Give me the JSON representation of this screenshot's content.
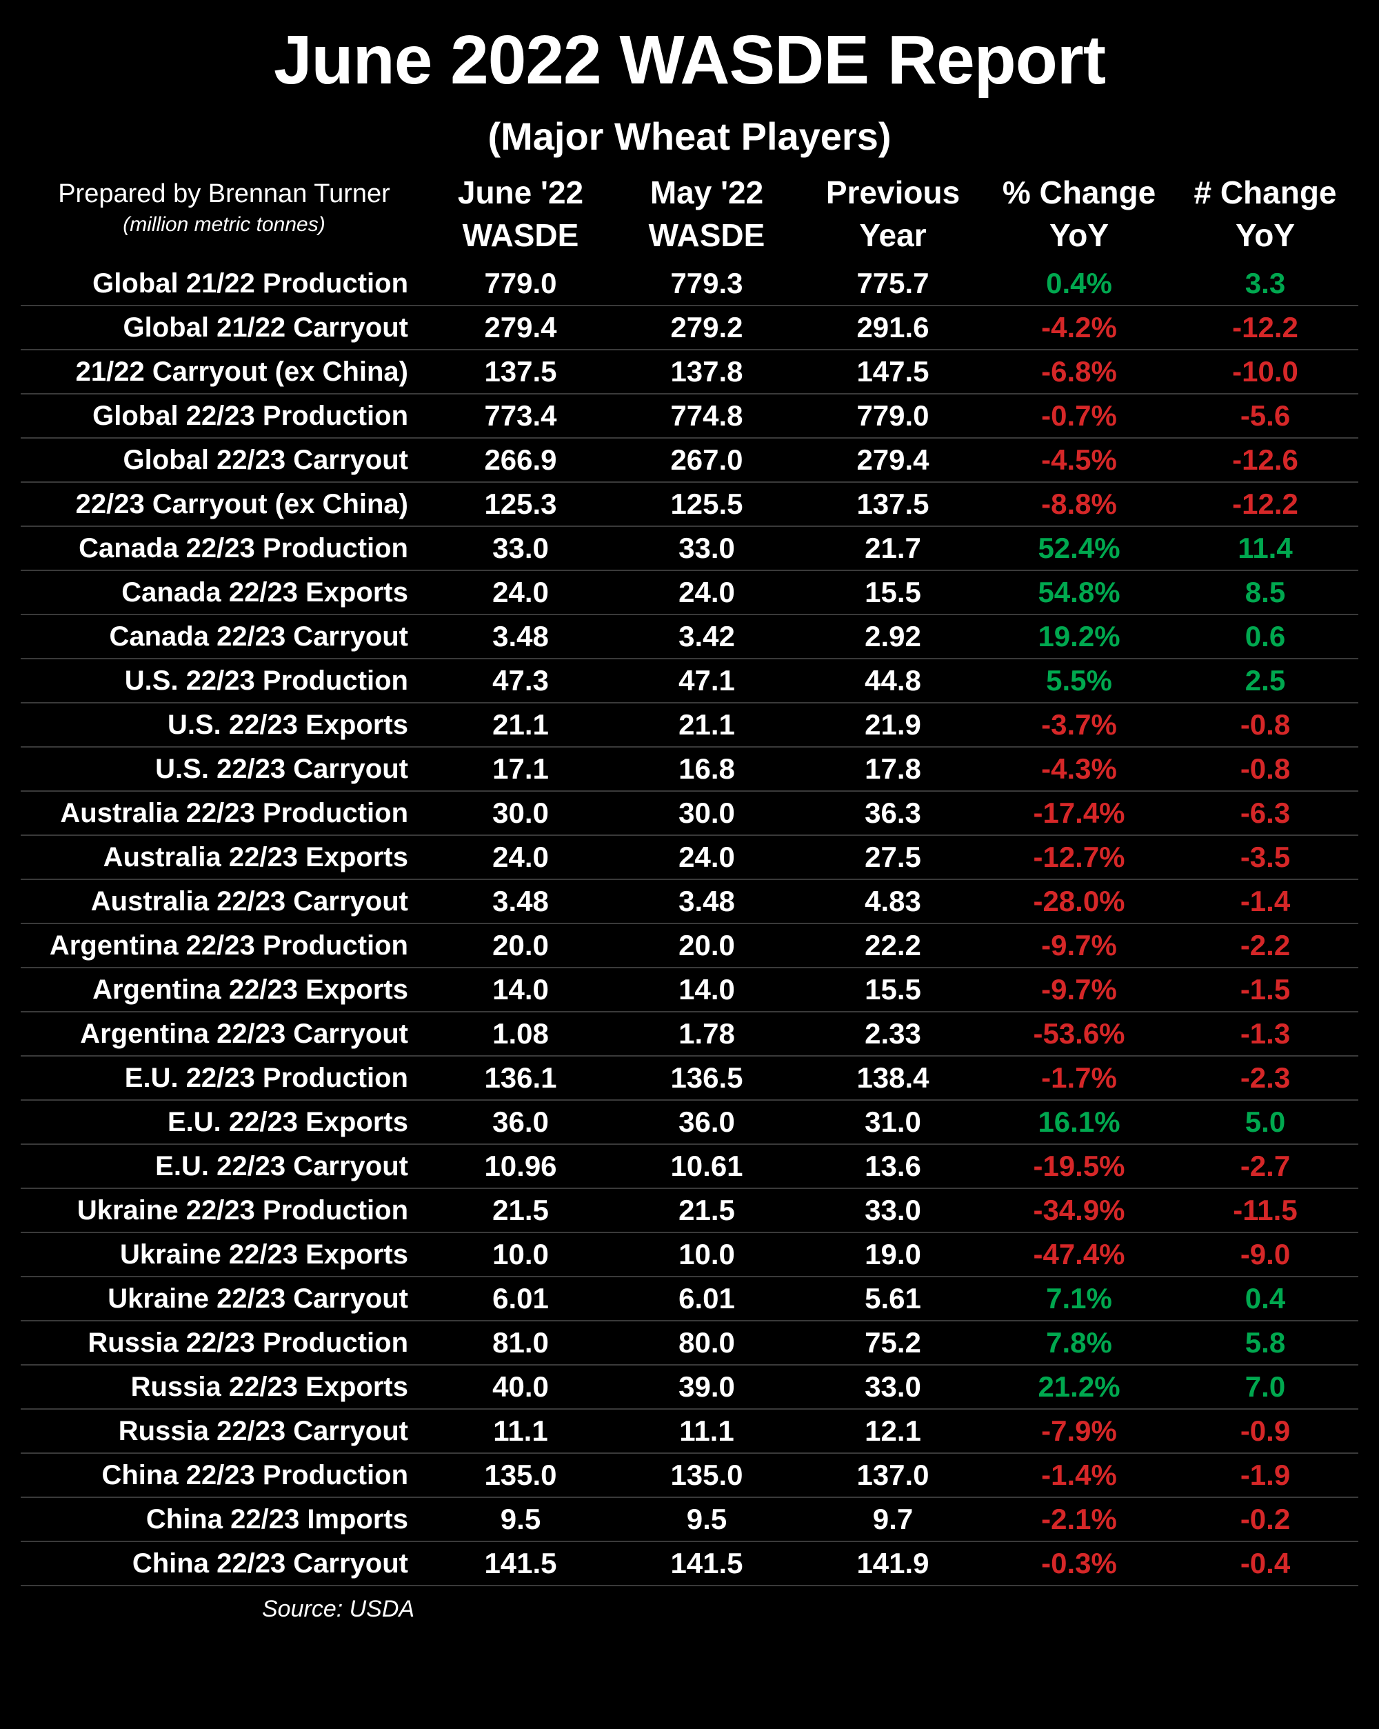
{
  "title": "June 2022 WASDE Report",
  "subtitle": "(Major Wheat Players)",
  "prepared_by": "Prepared by Brennan Turner",
  "units": "(million metric tonnes)",
  "source": "Source: USDA",
  "colors": {
    "background": "#000000",
    "text": "#ffffff",
    "positive": "#00a84f",
    "negative": "#d62728",
    "rule": "#3a3a3a"
  },
  "columns": [
    {
      "line1": "June '22",
      "line2": "WASDE"
    },
    {
      "line1": "May '22",
      "line2": "WASDE"
    },
    {
      "line1": "Previous",
      "line2": "Year"
    },
    {
      "line1": "% Change",
      "line2": "YoY"
    },
    {
      "line1": "# Change",
      "line2": "YoY"
    }
  ],
  "rows": [
    {
      "label": "Global 21/22 Production",
      "jun": "779.0",
      "may": "779.3",
      "prev": "775.7",
      "pct": "0.4%",
      "pct_dir": "pos",
      "num": "3.3",
      "num_dir": "pos"
    },
    {
      "label": "Global 21/22 Carryout",
      "jun": "279.4",
      "may": "279.2",
      "prev": "291.6",
      "pct": "-4.2%",
      "pct_dir": "neg",
      "num": "-12.2",
      "num_dir": "neg"
    },
    {
      "label": "21/22 Carryout (ex China)",
      "jun": "137.5",
      "may": "137.8",
      "prev": "147.5",
      "pct": "-6.8%",
      "pct_dir": "neg",
      "num": "-10.0",
      "num_dir": "neg"
    },
    {
      "label": "Global 22/23 Production",
      "jun": "773.4",
      "may": "774.8",
      "prev": "779.0",
      "pct": "-0.7%",
      "pct_dir": "neg",
      "num": "-5.6",
      "num_dir": "neg"
    },
    {
      "label": "Global 22/23 Carryout",
      "jun": "266.9",
      "may": "267.0",
      "prev": "279.4",
      "pct": "-4.5%",
      "pct_dir": "neg",
      "num": "-12.6",
      "num_dir": "neg"
    },
    {
      "label": "22/23 Carryout (ex China)",
      "jun": "125.3",
      "may": "125.5",
      "prev": "137.5",
      "pct": "-8.8%",
      "pct_dir": "neg",
      "num": "-12.2",
      "num_dir": "neg"
    },
    {
      "label": "Canada 22/23 Production",
      "jun": "33.0",
      "may": "33.0",
      "prev": "21.7",
      "pct": "52.4%",
      "pct_dir": "pos",
      "num": "11.4",
      "num_dir": "pos"
    },
    {
      "label": "Canada 22/23 Exports",
      "jun": "24.0",
      "may": "24.0",
      "prev": "15.5",
      "pct": "54.8%",
      "pct_dir": "pos",
      "num": "8.5",
      "num_dir": "pos"
    },
    {
      "label": "Canada 22/23 Carryout",
      "jun": "3.48",
      "may": "3.42",
      "prev": "2.92",
      "pct": "19.2%",
      "pct_dir": "pos",
      "num": "0.6",
      "num_dir": "pos"
    },
    {
      "label": "U.S. 22/23 Production",
      "jun": "47.3",
      "may": "47.1",
      "prev": "44.8",
      "pct": "5.5%",
      "pct_dir": "pos",
      "num": "2.5",
      "num_dir": "pos"
    },
    {
      "label": "U.S. 22/23 Exports",
      "jun": "21.1",
      "may": "21.1",
      "prev": "21.9",
      "pct": "-3.7%",
      "pct_dir": "neg",
      "num": "-0.8",
      "num_dir": "neg"
    },
    {
      "label": "U.S. 22/23 Carryout",
      "jun": "17.1",
      "may": "16.8",
      "prev": "17.8",
      "pct": "-4.3%",
      "pct_dir": "neg",
      "num": "-0.8",
      "num_dir": "neg"
    },
    {
      "label": "Australia 22/23 Production",
      "jun": "30.0",
      "may": "30.0",
      "prev": "36.3",
      "pct": "-17.4%",
      "pct_dir": "neg",
      "num": "-6.3",
      "num_dir": "neg"
    },
    {
      "label": "Australia 22/23 Exports",
      "jun": "24.0",
      "may": "24.0",
      "prev": "27.5",
      "pct": "-12.7%",
      "pct_dir": "neg",
      "num": "-3.5",
      "num_dir": "neg"
    },
    {
      "label": "Australia 22/23 Carryout",
      "jun": "3.48",
      "may": "3.48",
      "prev": "4.83",
      "pct": "-28.0%",
      "pct_dir": "neg",
      "num": "-1.4",
      "num_dir": "neg"
    },
    {
      "label": "Argentina 22/23 Production",
      "jun": "20.0",
      "may": "20.0",
      "prev": "22.2",
      "pct": "-9.7%",
      "pct_dir": "neg",
      "num": "-2.2",
      "num_dir": "neg"
    },
    {
      "label": "Argentina 22/23 Exports",
      "jun": "14.0",
      "may": "14.0",
      "prev": "15.5",
      "pct": "-9.7%",
      "pct_dir": "neg",
      "num": "-1.5",
      "num_dir": "neg"
    },
    {
      "label": "Argentina 22/23 Carryout",
      "jun": "1.08",
      "may": "1.78",
      "prev": "2.33",
      "pct": "-53.6%",
      "pct_dir": "neg",
      "num": "-1.3",
      "num_dir": "neg"
    },
    {
      "label": "E.U. 22/23 Production",
      "jun": "136.1",
      "may": "136.5",
      "prev": "138.4",
      "pct": "-1.7%",
      "pct_dir": "neg",
      "num": "-2.3",
      "num_dir": "neg"
    },
    {
      "label": "E.U. 22/23 Exports",
      "jun": "36.0",
      "may": "36.0",
      "prev": "31.0",
      "pct": "16.1%",
      "pct_dir": "pos",
      "num": "5.0",
      "num_dir": "pos"
    },
    {
      "label": "E.U. 22/23 Carryout",
      "jun": "10.96",
      "may": "10.61",
      "prev": "13.6",
      "pct": "-19.5%",
      "pct_dir": "neg",
      "num": "-2.7",
      "num_dir": "neg"
    },
    {
      "label": "Ukraine 22/23 Production",
      "jun": "21.5",
      "may": "21.5",
      "prev": "33.0",
      "pct": "-34.9%",
      "pct_dir": "neg",
      "num": "-11.5",
      "num_dir": "neg"
    },
    {
      "label": "Ukraine 22/23 Exports",
      "jun": "10.0",
      "may": "10.0",
      "prev": "19.0",
      "pct": "-47.4%",
      "pct_dir": "neg",
      "num": "-9.0",
      "num_dir": "neg"
    },
    {
      "label": "Ukraine 22/23 Carryout",
      "jun": "6.01",
      "may": "6.01",
      "prev": "5.61",
      "pct": "7.1%",
      "pct_dir": "pos",
      "num": "0.4",
      "num_dir": "pos"
    },
    {
      "label": "Russia 22/23 Production",
      "jun": "81.0",
      "may": "80.0",
      "prev": "75.2",
      "pct": "7.8%",
      "pct_dir": "pos",
      "num": "5.8",
      "num_dir": "pos"
    },
    {
      "label": "Russia 22/23 Exports",
      "jun": "40.0",
      "may": "39.0",
      "prev": "33.0",
      "pct": "21.2%",
      "pct_dir": "pos",
      "num": "7.0",
      "num_dir": "pos"
    },
    {
      "label": "Russia 22/23 Carryout",
      "jun": "11.1",
      "may": "11.1",
      "prev": "12.1",
      "pct": "-7.9%",
      "pct_dir": "neg",
      "num": "-0.9",
      "num_dir": "neg"
    },
    {
      "label": "China 22/23 Production",
      "jun": "135.0",
      "may": "135.0",
      "prev": "137.0",
      "pct": "-1.4%",
      "pct_dir": "neg",
      "num": "-1.9",
      "num_dir": "neg"
    },
    {
      "label": "China 22/23 Imports",
      "jun": "9.5",
      "may": "9.5",
      "prev": "9.7",
      "pct": "-2.1%",
      "pct_dir": "neg",
      "num": "-0.2",
      "num_dir": "neg"
    },
    {
      "label": "China 22/23 Carryout",
      "jun": "141.5",
      "may": "141.5",
      "prev": "141.9",
      "pct": "-0.3%",
      "pct_dir": "neg",
      "num": "-0.4",
      "num_dir": "neg"
    }
  ]
}
